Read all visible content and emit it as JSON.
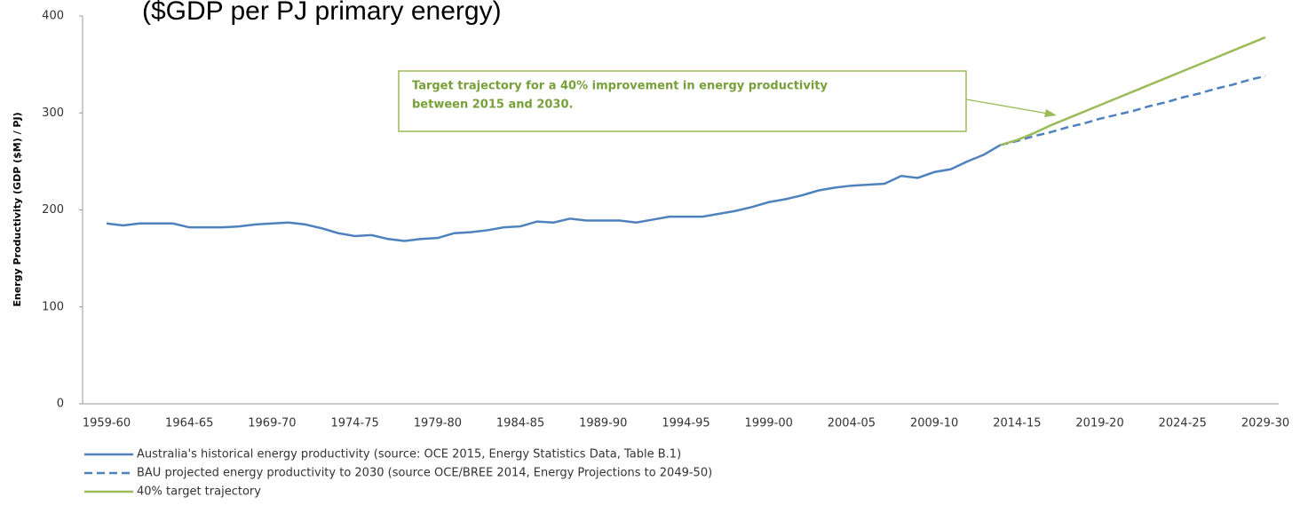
{
  "chart_data": {
    "type": "line",
    "subtitle": "($GDP per PJ primary energy)",
    "y_label": "Energy Productivity (GDP ($M) / PJ)",
    "annotation": [
      "Target trajectory for a 40% improvement in energy productivity",
      "between 2015 and 2030."
    ],
    "categories": [
      "1959-60",
      null,
      null,
      null,
      null,
      "1964-65",
      null,
      null,
      null,
      null,
      "1969-70",
      null,
      null,
      null,
      null,
      "1974-75",
      null,
      null,
      null,
      null,
      "1979-80",
      null,
      null,
      null,
      null,
      "1984-85",
      null,
      null,
      null,
      null,
      "1989-90",
      null,
      null,
      null,
      null,
      "1994-95",
      null,
      null,
      null,
      null,
      "1999-00",
      null,
      null,
      null,
      null,
      "2004-05",
      null,
      null,
      null,
      null,
      "2009-10",
      null,
      null,
      null,
      null,
      "2014-15",
      null,
      null,
      null,
      null,
      "2019-20",
      null,
      null,
      null,
      null,
      "2024-25",
      null,
      null,
      null,
      null,
      "2029-30"
    ],
    "ylim": [
      0,
      400
    ],
    "yticks": [
      0,
      100,
      200,
      300,
      400
    ],
    "grid": false,
    "legend": "bottom-left",
    "series": [
      {
        "name": "Australia's historical energy productivity (source: OCE 2015, Energy Statistics Data, Table B.1)",
        "color": "#4f81bd",
        "dashed": false,
        "values": [
          186,
          184,
          186,
          186,
          186,
          182,
          182,
          182,
          183,
          185,
          186,
          187,
          185,
          181,
          176,
          173,
          174,
          170,
          168,
          170,
          171,
          176,
          177,
          179,
          182,
          183,
          188,
          187,
          191,
          189,
          189,
          189,
          187,
          190,
          193,
          193,
          193,
          196,
          199,
          203,
          208,
          211,
          215,
          220,
          223,
          225,
          226,
          227,
          235,
          233,
          239,
          242,
          250,
          257,
          267,
          null,
          null,
          null,
          null,
          null,
          null,
          null,
          null,
          null,
          null,
          null,
          null,
          null,
          null,
          null,
          null
        ]
      },
      {
        "name": "BAU projected energy productivity to 2030 (source OCE/BREE 2014, Energy Projections to 2049-50)",
        "color": "#4f81bd",
        "dashed": true,
        "values": [
          null,
          null,
          null,
          null,
          null,
          null,
          null,
          null,
          null,
          null,
          null,
          null,
          null,
          null,
          null,
          null,
          null,
          null,
          null,
          null,
          null,
          null,
          null,
          null,
          null,
          null,
          null,
          null,
          null,
          null,
          null,
          null,
          null,
          null,
          null,
          null,
          null,
          null,
          null,
          null,
          null,
          null,
          null,
          null,
          null,
          null,
          null,
          null,
          null,
          null,
          null,
          null,
          null,
          null,
          267,
          271,
          276,
          280,
          285,
          289,
          294,
          298,
          302,
          307,
          311,
          316,
          320,
          325,
          329,
          334,
          338
        ]
      },
      {
        "name": "40% target trajectory",
        "color": "#9bbb59",
        "dashed": false,
        "values": [
          null,
          null,
          null,
          null,
          null,
          null,
          null,
          null,
          null,
          null,
          null,
          null,
          null,
          null,
          null,
          null,
          null,
          null,
          null,
          null,
          null,
          null,
          null,
          null,
          null,
          null,
          null,
          null,
          null,
          null,
          null,
          null,
          null,
          null,
          null,
          null,
          null,
          null,
          null,
          null,
          null,
          null,
          null,
          null,
          null,
          null,
          null,
          null,
          null,
          null,
          null,
          null,
          null,
          null,
          267,
          272,
          279,
          287,
          294,
          301,
          308,
          315,
          322,
          329,
          336,
          343,
          350,
          357,
          364,
          371,
          378
        ]
      }
    ]
  }
}
